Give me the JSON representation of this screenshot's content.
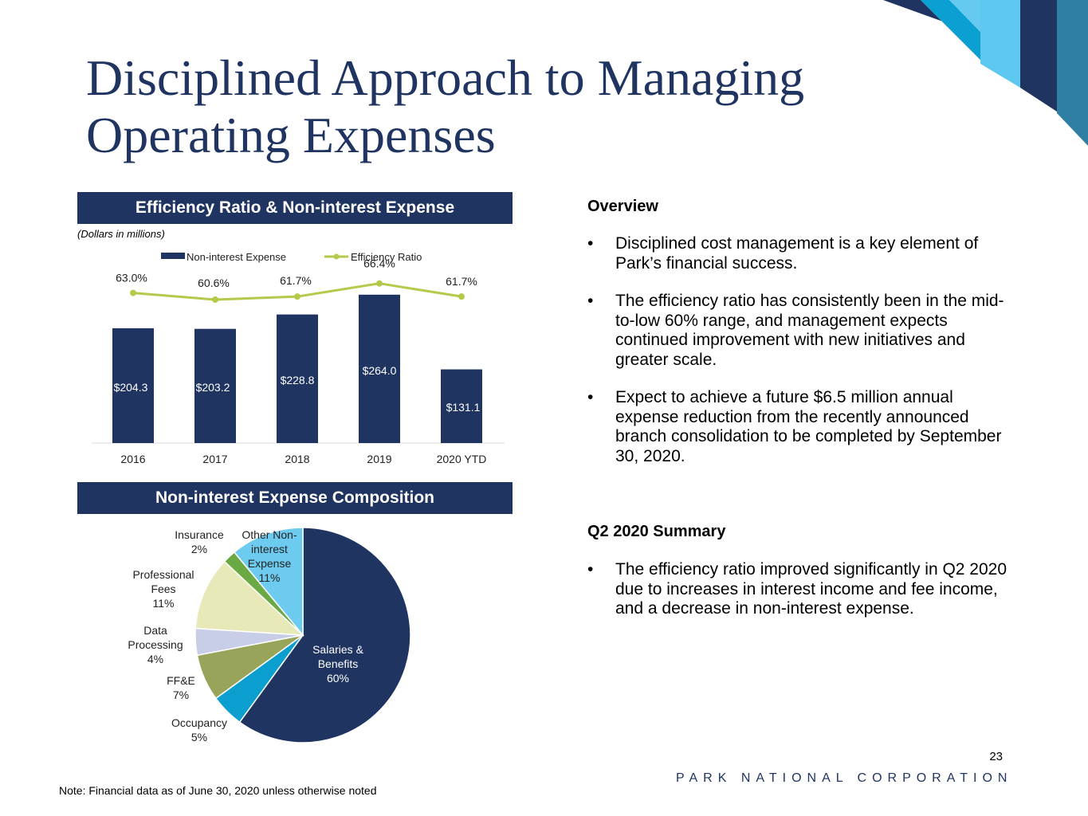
{
  "title_line1": "Disciplined Approach to Managing",
  "title_line2": "Operating Expenses",
  "chart_banner": "Efficiency Ratio & Non-interest Expense",
  "units_note": "(Dollars in millions)",
  "pie_banner": "Non-interest Expense Composition",
  "colors": {
    "navy": "#1f3461",
    "green_line": "#b5c94a",
    "light_blue": "#5bc8f0"
  },
  "chart_data": [
    {
      "type": "bar",
      "title": "Efficiency Ratio & Non-interest Expense",
      "categories": [
        "2016",
        "2017",
        "2018",
        "2019",
        "2020 YTD"
      ],
      "series": [
        {
          "name": "Non-interest Expense",
          "type": "bar",
          "values": [
            204.3,
            203.2,
            228.8,
            264.0,
            131.1
          ],
          "labels": [
            "$204.3",
            "$203.2",
            "$228.8",
            "$264.0",
            "$131.1"
          ]
        },
        {
          "name": "Efficiency Ratio",
          "type": "line",
          "values": [
            63.0,
            60.6,
            61.7,
            66.4,
            61.7
          ],
          "labels": [
            "63.0%",
            "60.6%",
            "61.7%",
            "66.4%",
            "61.7%"
          ]
        }
      ],
      "legend": [
        "Non-interest Expense",
        "Efficiency Ratio"
      ],
      "ylim_bars": [
        0,
        285
      ],
      "ylim_line": [
        0,
        100
      ]
    },
    {
      "type": "pie",
      "title": "Non-interest Expense Composition",
      "slices": [
        {
          "name": "Salaries & Benefits",
          "value": 60,
          "label": "Salaries &\nBenefits\n60%",
          "color": "#1f3461"
        },
        {
          "name": "Occupancy",
          "value": 5,
          "label": "Occupancy\n5%",
          "color": "#0a9fcf"
        },
        {
          "name": "FF&E",
          "value": 7,
          "label": "FF&E\n7%",
          "color": "#98a45a"
        },
        {
          "name": "Data Processing",
          "value": 4,
          "label": "Data\nProcessing\n4%",
          "color": "#c8cde8"
        },
        {
          "name": "Professional Fees",
          "value": 11,
          "label": "Professional\nFees\n11%",
          "color": "#e7e9b9"
        },
        {
          "name": "Insurance",
          "value": 2,
          "label": "Insurance\n2%",
          "color": "#6aa944"
        },
        {
          "name": "Other Non-interest Expense",
          "value": 11,
          "label": "Other Non-\ninterest\nExpense\n11%",
          "color": "#6ecbf0"
        }
      ]
    }
  ],
  "overview": {
    "heading": "Overview",
    "bullets": [
      "Disciplined cost management is a key element of Park’s financial success.",
      "The efficiency ratio has consistently been in the mid-to-low 60% range, and management expects continued improvement with new initiatives and greater scale.",
      "Expect to achieve a future $6.5 million annual expense reduction from the recently announced branch consolidation to be completed by September 30, 2020."
    ]
  },
  "summary": {
    "heading": "Q2 2020 Summary",
    "bullets": [
      "The efficiency ratio improved significantly in Q2 2020 due to increases in interest income and fee income, and a decrease in non-interest expense."
    ]
  },
  "page_number": "23",
  "corporation": "PARK NATIONAL CORPORATION",
  "note": "Note: Financial data as of June 30, 2020 unless otherwise noted"
}
